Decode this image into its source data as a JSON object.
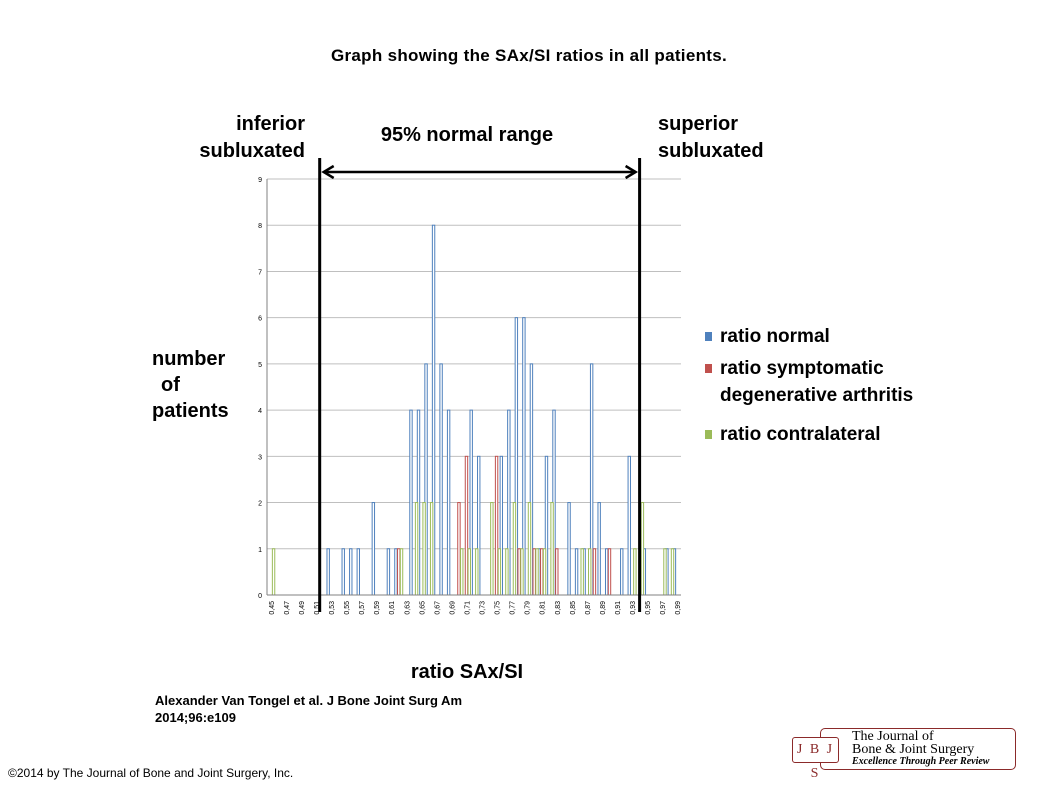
{
  "page": {
    "title": "Graph showing the SAx/SI ratios in all patients.",
    "citation_line1": "Alexander Van Tongel et al. J Bone Joint Surg Am",
    "citation_line2": "2014;96:e109",
    "copyright": "©2014 by The Journal of Bone and Joint Surgery, Inc."
  },
  "logo": {
    "abbrev": "J B J S",
    "line1": "The Journal of",
    "line2": "Bone & Joint Surgery",
    "line3": "Excellence Through Peer Review"
  },
  "chart_data": {
    "type": "bar",
    "xlabel": "ratio SAx/SI",
    "ylabel": [
      "number",
      "of",
      "patients"
    ],
    "ylim": [
      0,
      9
    ],
    "yticks": [
      0,
      1,
      2,
      3,
      4,
      5,
      6,
      7,
      8,
      9
    ],
    "grid": true,
    "x_tick_labels": [
      "0,45",
      "0,47",
      "0,49",
      "0,51",
      "0,53",
      "0,55",
      "0,57",
      "0,59",
      "0,61",
      "0,63",
      "0,65",
      "0,67",
      "0,69",
      "0,71",
      "0,73",
      "0,75",
      "0,77",
      "0,79",
      "0,81",
      "0,83",
      "0,85",
      "0,87",
      "0,89",
      "0,91",
      "0,93",
      "0,95",
      "0,97",
      "0,99"
    ],
    "categories": [
      "0,45",
      "0,46",
      "0,47",
      "0,48",
      "0,49",
      "0,50",
      "0,51",
      "0,52",
      "0,53",
      "0,54",
      "0,55",
      "0,56",
      "0,57",
      "0,58",
      "0,59",
      "0,60",
      "0,61",
      "0,62",
      "0,63",
      "0,64",
      "0,65",
      "0,66",
      "0,67",
      "0,68",
      "0,69",
      "0,70",
      "0,71",
      "0,72",
      "0,73",
      "0,74",
      "0,75",
      "0,76",
      "0,77",
      "0,78",
      "0,79",
      "0,80",
      "0,81",
      "0,82",
      "0,83",
      "0,84",
      "0,85",
      "0,86",
      "0,87",
      "0,88",
      "0,89",
      "0,90",
      "0,91",
      "0,92",
      "0,93",
      "0,94",
      "0,95",
      "0,96",
      "0,97",
      "0,98",
      "0,99"
    ],
    "series": [
      {
        "name": "ratio normal",
        "color": "#4f81bd",
        "values": [
          0,
          0,
          0,
          0,
          0,
          0,
          0,
          0,
          1,
          0,
          1,
          1,
          1,
          0,
          2,
          0,
          1,
          1,
          0,
          4,
          4,
          5,
          8,
          5,
          4,
          0,
          0,
          4,
          3,
          0,
          0,
          3,
          4,
          6,
          6,
          5,
          1,
          3,
          4,
          0,
          2,
          1,
          1,
          5,
          2,
          1,
          0,
          1,
          3,
          0,
          1,
          0,
          0,
          1,
          1
        ]
      },
      {
        "name": "ratio symptomatic degenerative arthritis",
        "color": "#c0504d",
        "values": [
          0,
          0,
          0,
          0,
          0,
          0,
          0,
          0,
          0,
          0,
          0,
          0,
          0,
          0,
          0,
          0,
          0,
          1,
          0,
          0,
          0,
          0,
          0,
          0,
          0,
          2,
          3,
          0,
          0,
          0,
          3,
          0,
          0,
          1,
          0,
          1,
          1,
          0,
          1,
          0,
          0,
          0,
          0,
          1,
          0,
          1,
          0,
          0,
          0,
          0,
          0,
          0,
          0,
          0,
          0
        ]
      },
      {
        "name": "ratio contralateral",
        "color": "#9bbb59",
        "values": [
          1,
          0,
          0,
          0,
          0,
          0,
          0,
          0,
          0,
          0,
          0,
          0,
          0,
          0,
          0,
          0,
          0,
          1,
          0,
          2,
          2,
          2,
          0,
          0,
          0,
          1,
          1,
          1,
          0,
          2,
          1,
          1,
          2,
          1,
          2,
          1,
          1,
          2,
          0,
          0,
          0,
          1,
          1,
          0,
          0,
          0,
          0,
          0,
          1,
          2,
          0,
          0,
          1,
          1,
          0
        ]
      }
    ],
    "annotations": {
      "range_label": "95% normal range",
      "left_label_1": "inferior",
      "left_label_2": "subluxated",
      "right_label_1": "superior",
      "right_label_2": "subluxated",
      "range_bounds": [
        0.515,
        0.94
      ]
    },
    "legend_placement": "right"
  }
}
